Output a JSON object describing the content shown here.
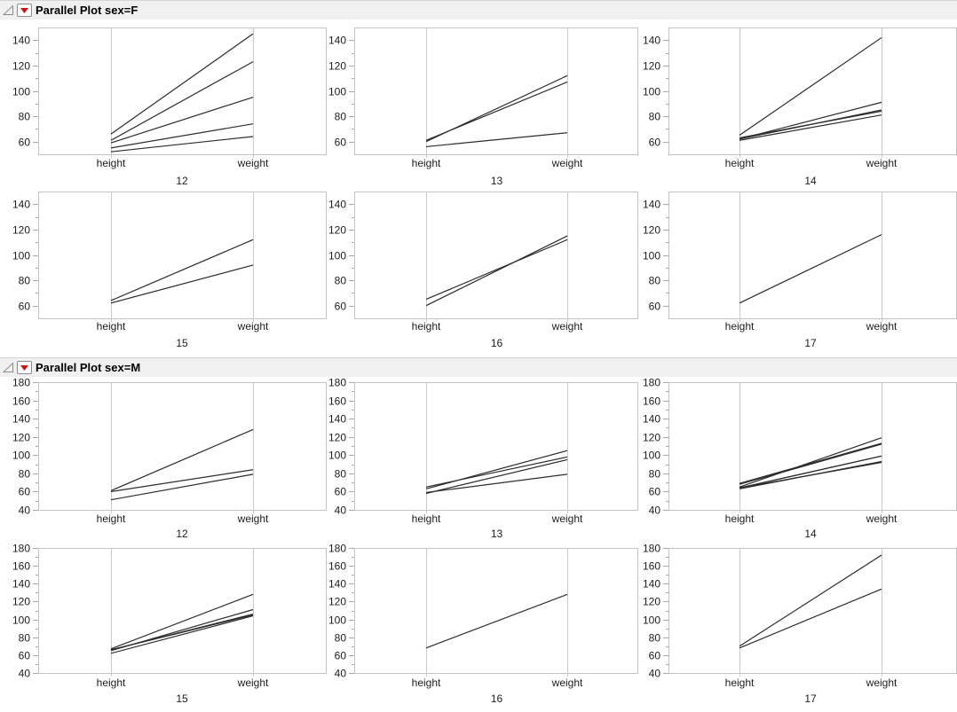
{
  "colors": {
    "background": "#ffffff",
    "header_bg": "#f0f0f0",
    "header_border": "#d6d6d6",
    "frame": "#c3c3c3",
    "axis_line": "#c9c9c9",
    "tick": "#a9a9a9",
    "text": "#1c1c1c",
    "profile_line": "#2b2b2b",
    "menu_red": "#cc1111",
    "disclosure_gray": "#8c8c8c"
  },
  "chart_data": [
    {
      "type": "line",
      "chart_kind": "parallel-coordinates",
      "title": "Parallel Plot sex=F",
      "axis_labels": [
        "height",
        "weight"
      ],
      "panel_variable_values": [
        "12",
        "13",
        "14",
        "15",
        "16",
        "17"
      ],
      "ylim": [
        50,
        150
      ],
      "yticks": [
        60,
        80,
        100,
        120,
        140
      ],
      "minor_tick_interval": 10,
      "grid": false,
      "legend": "none",
      "panels": [
        {
          "label": "12",
          "lines": [
            [
              66,
              145
            ],
            [
              61,
              123
            ],
            [
              59,
              95
            ],
            [
              55,
              74
            ],
            [
              52,
              64
            ]
          ]
        },
        {
          "label": "13",
          "lines": [
            [
              60,
              112
            ],
            [
              61,
              107
            ],
            [
              56,
              67
            ]
          ]
        },
        {
          "label": "14",
          "lines": [
            [
              65,
              142
            ],
            [
              62,
              91
            ],
            [
              62,
              85
            ],
            [
              63,
              84
            ],
            [
              61,
              81
            ]
          ]
        },
        {
          "label": "15",
          "lines": [
            [
              64,
              112
            ],
            [
              62,
              92
            ]
          ]
        },
        {
          "label": "16",
          "lines": [
            [
              60,
              115
            ],
            [
              65,
              112
            ]
          ]
        },
        {
          "label": "17",
          "lines": [
            [
              62,
              116
            ]
          ]
        }
      ]
    },
    {
      "type": "line",
      "chart_kind": "parallel-coordinates",
      "title": "Parallel Plot sex=M",
      "axis_labels": [
        "height",
        "weight"
      ],
      "panel_variable_values": [
        "12",
        "13",
        "14",
        "15",
        "16",
        "17"
      ],
      "ylim": [
        40,
        180
      ],
      "yticks": [
        40,
        60,
        80,
        100,
        120,
        140,
        160,
        180
      ],
      "minor_tick_interval": 10,
      "grid": false,
      "legend": "none",
      "panels": [
        {
          "label": "12",
          "lines": [
            [
              61,
              128
            ],
            [
              60,
              84
            ],
            [
              51,
              79
            ]
          ]
        },
        {
          "label": "13",
          "lines": [
            [
              63,
              105
            ],
            [
              65,
              98
            ],
            [
              58,
              95
            ],
            [
              59,
              79
            ]
          ]
        },
        {
          "label": "14",
          "lines": [
            [
              65,
              119
            ],
            [
              69,
              113
            ],
            [
              68,
              112
            ],
            [
              64,
              99
            ],
            [
              64,
              99
            ],
            [
              63,
              93
            ],
            [
              64,
              92
            ]
          ]
        },
        {
          "label": "15",
          "lines": [
            [
              67,
              128
            ],
            [
              65,
              111
            ],
            [
              66,
              106
            ],
            [
              66,
              105
            ],
            [
              62,
              104
            ]
          ]
        },
        {
          "label": "16",
          "lines": [
            [
              68,
              128
            ]
          ]
        },
        {
          "label": "17",
          "lines": [
            [
              70,
              172
            ],
            [
              68,
              134
            ]
          ]
        }
      ]
    }
  ]
}
